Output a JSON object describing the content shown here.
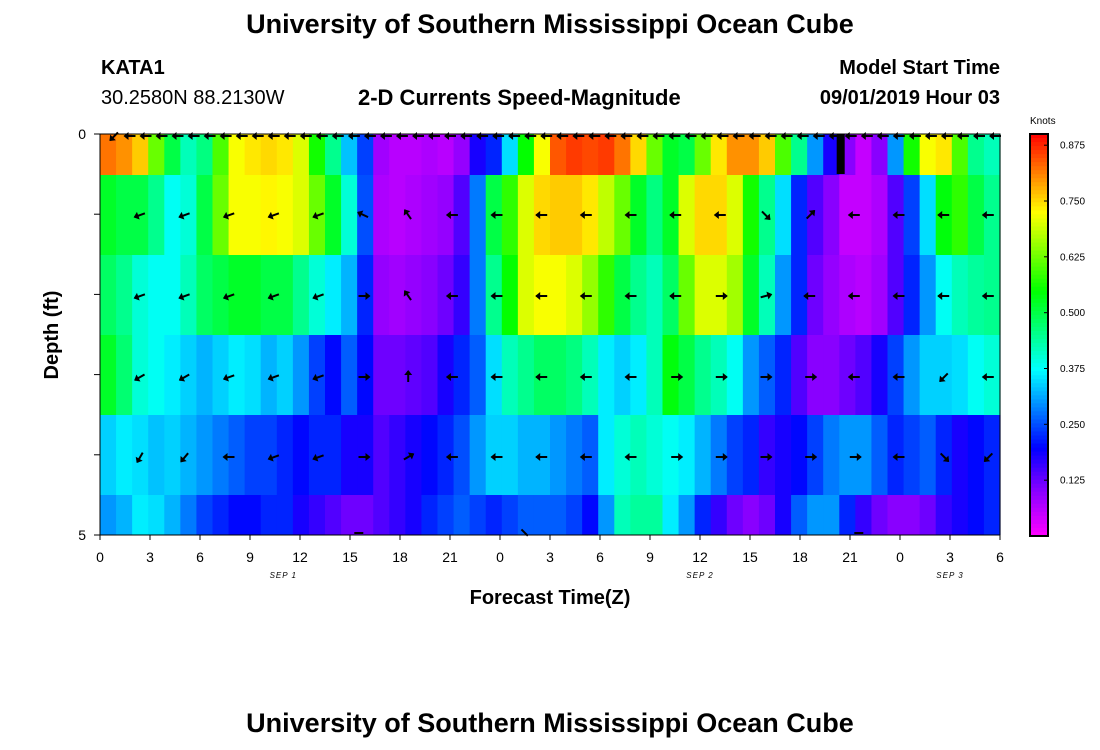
{
  "header": {
    "title": "University of Southern Mississippi Ocean Cube",
    "station": "KATA1",
    "coords": "30.2580N 88.2130W",
    "subtitle": "2-D Currents Speed-Magnitude",
    "model_label": "Model Start Time",
    "model_time": "09/01/2019 Hour 03"
  },
  "footer": {
    "title": "University of Southern Mississippi Ocean Cube"
  },
  "chart_data": {
    "type": "heatmap",
    "title": "2-D Currents Speed-Magnitude",
    "xlabel": "Forecast Time(Z)",
    "ylabel": "Depth (ft)",
    "x_tick_labels": [
      "0",
      "3",
      "6",
      "9",
      "12",
      "15",
      "18",
      "21",
      "0",
      "3",
      "6",
      "9",
      "12",
      "15",
      "18",
      "21",
      "0",
      "3",
      "6"
    ],
    "x_range_hours": [
      0,
      54
    ],
    "date_labels": [
      {
        "text": "SEP 1",
        "hour": 11
      },
      {
        "text": "SEP 2",
        "hour": 36
      },
      {
        "text": "SEP 3",
        "hour": 51
      }
    ],
    "y_tick_labels": [
      "0",
      "5"
    ],
    "ylim": [
      0,
      5
    ],
    "depth_bins": 5,
    "colorbar": {
      "label": "Knots",
      "ticks": [
        "0.875",
        "0.750",
        "0.625",
        "0.500",
        "0.375",
        "0.250",
        "0.125"
      ],
      "range": [
        0.0,
        0.9
      ]
    },
    "speed_knots_hourly": [
      [
        0.82,
        0.8,
        0.76,
        0.62,
        0.5,
        0.42,
        0.46,
        0.6,
        0.72,
        0.74,
        0.75,
        0.74,
        0.7,
        0.56,
        0.45,
        0.33,
        0.24,
        0.08,
        0.06,
        0.06,
        0.07,
        0.06,
        0.09,
        0.18,
        0.22,
        0.35,
        0.55,
        0.72,
        0.84,
        0.86,
        0.85,
        0.86,
        0.82,
        0.75,
        0.62,
        0.52,
        0.5,
        0.62,
        0.74,
        0.8,
        0.8,
        0.76,
        0.6,
        0.45,
        0.3,
        0.18,
        0.1,
        0.05,
        0.1,
        0.3,
        0.56,
        0.72,
        0.74,
        0.6,
        0.45,
        0.42
      ],
      [
        0.52,
        0.5,
        0.5,
        0.45,
        0.38,
        0.4,
        0.5,
        0.62,
        0.72,
        0.72,
        0.73,
        0.72,
        0.7,
        0.62,
        0.52,
        0.4,
        0.25,
        0.07,
        0.06,
        0.07,
        0.08,
        0.09,
        0.14,
        0.28,
        0.5,
        0.58,
        0.7,
        0.75,
        0.76,
        0.76,
        0.74,
        0.68,
        0.62,
        0.52,
        0.46,
        0.52,
        0.7,
        0.75,
        0.75,
        0.7,
        0.56,
        0.45,
        0.35,
        0.22,
        0.14,
        0.1,
        0.05,
        0.05,
        0.07,
        0.14,
        0.24,
        0.35,
        0.54,
        0.58,
        0.5,
        0.45
      ],
      [
        0.48,
        0.45,
        0.4,
        0.38,
        0.38,
        0.42,
        0.48,
        0.5,
        0.52,
        0.52,
        0.5,
        0.5,
        0.45,
        0.4,
        0.36,
        0.32,
        0.22,
        0.09,
        0.08,
        0.09,
        0.1,
        0.12,
        0.16,
        0.28,
        0.45,
        0.55,
        0.7,
        0.72,
        0.72,
        0.7,
        0.65,
        0.58,
        0.5,
        0.45,
        0.42,
        0.48,
        0.62,
        0.7,
        0.7,
        0.66,
        0.52,
        0.42,
        0.3,
        0.22,
        0.12,
        0.09,
        0.07,
        0.06,
        0.08,
        0.14,
        0.22,
        0.3,
        0.38,
        0.42,
        0.44,
        0.45
      ],
      [
        0.52,
        0.47,
        0.4,
        0.38,
        0.36,
        0.34,
        0.32,
        0.34,
        0.36,
        0.35,
        0.32,
        0.34,
        0.3,
        0.24,
        0.2,
        0.26,
        0.2,
        0.12,
        0.12,
        0.13,
        0.14,
        0.18,
        0.22,
        0.26,
        0.35,
        0.42,
        0.45,
        0.48,
        0.48,
        0.46,
        0.42,
        0.36,
        0.34,
        0.36,
        0.42,
        0.54,
        0.5,
        0.45,
        0.42,
        0.38,
        0.3,
        0.26,
        0.22,
        0.14,
        0.1,
        0.1,
        0.12,
        0.14,
        0.18,
        0.24,
        0.3,
        0.34,
        0.34,
        0.35,
        0.38,
        0.4
      ],
      [
        0.34,
        0.36,
        0.35,
        0.33,
        0.34,
        0.32,
        0.3,
        0.28,
        0.26,
        0.24,
        0.24,
        0.22,
        0.2,
        0.22,
        0.22,
        0.18,
        0.18,
        0.14,
        0.16,
        0.18,
        0.2,
        0.22,
        0.25,
        0.3,
        0.34,
        0.34,
        0.32,
        0.32,
        0.3,
        0.28,
        0.26,
        0.36,
        0.4,
        0.42,
        0.4,
        0.38,
        0.36,
        0.32,
        0.28,
        0.24,
        0.22,
        0.16,
        0.18,
        0.2,
        0.24,
        0.28,
        0.3,
        0.3,
        0.26,
        0.22,
        0.24,
        0.26,
        0.22,
        0.18,
        0.2,
        0.22
      ],
      [
        0.3,
        0.32,
        0.36,
        0.35,
        0.32,
        0.28,
        0.24,
        0.22,
        0.2,
        0.2,
        0.22,
        0.22,
        0.18,
        0.16,
        0.14,
        0.12,
        0.12,
        0.14,
        0.16,
        0.18,
        0.22,
        0.24,
        0.26,
        0.24,
        0.22,
        0.24,
        0.26,
        0.26,
        0.26,
        0.24,
        0.2,
        0.3,
        0.42,
        0.44,
        0.44,
        0.36,
        0.3,
        0.22,
        0.16,
        0.12,
        0.1,
        0.12,
        0.18,
        0.26,
        0.3,
        0.3,
        0.22,
        0.16,
        0.12,
        0.1,
        0.1,
        0.12,
        0.16,
        0.18,
        0.2,
        0.22
      ]
    ],
    "vector_directions_deg": [
      [
        225,
        180,
        180,
        180,
        180,
        180,
        180,
        180,
        180,
        180,
        180,
        180,
        180,
        180,
        180,
        180,
        180,
        180,
        180,
        180,
        180,
        180,
        180,
        180,
        180,
        180,
        180,
        180,
        180,
        180,
        180,
        180,
        180,
        180,
        180,
        180,
        180,
        180,
        180,
        180,
        180,
        180,
        180,
        180,
        180,
        180,
        180,
        180,
        180,
        180,
        180,
        180,
        180,
        180,
        180,
        180
      ],
      [
        200,
        200,
        200,
        200,
        200,
        155,
        125,
        180,
        180,
        180,
        180,
        180,
        180,
        180,
        315,
        45,
        180,
        180,
        180,
        180
      ],
      [
        200,
        200,
        200,
        200,
        200,
        0,
        125,
        180,
        180,
        180,
        180,
        180,
        180,
        0,
        15,
        180,
        180,
        180,
        180,
        180
      ],
      [
        210,
        210,
        200,
        200,
        200,
        0,
        90,
        180,
        180,
        180,
        180,
        180,
        0,
        0,
        0,
        0,
        180,
        180,
        225,
        180
      ],
      [
        240,
        230,
        180,
        200,
        200,
        0,
        30,
        180,
        180,
        180,
        180,
        180,
        0,
        0,
        0,
        0,
        0,
        180,
        315,
        225
      ]
    ]
  }
}
